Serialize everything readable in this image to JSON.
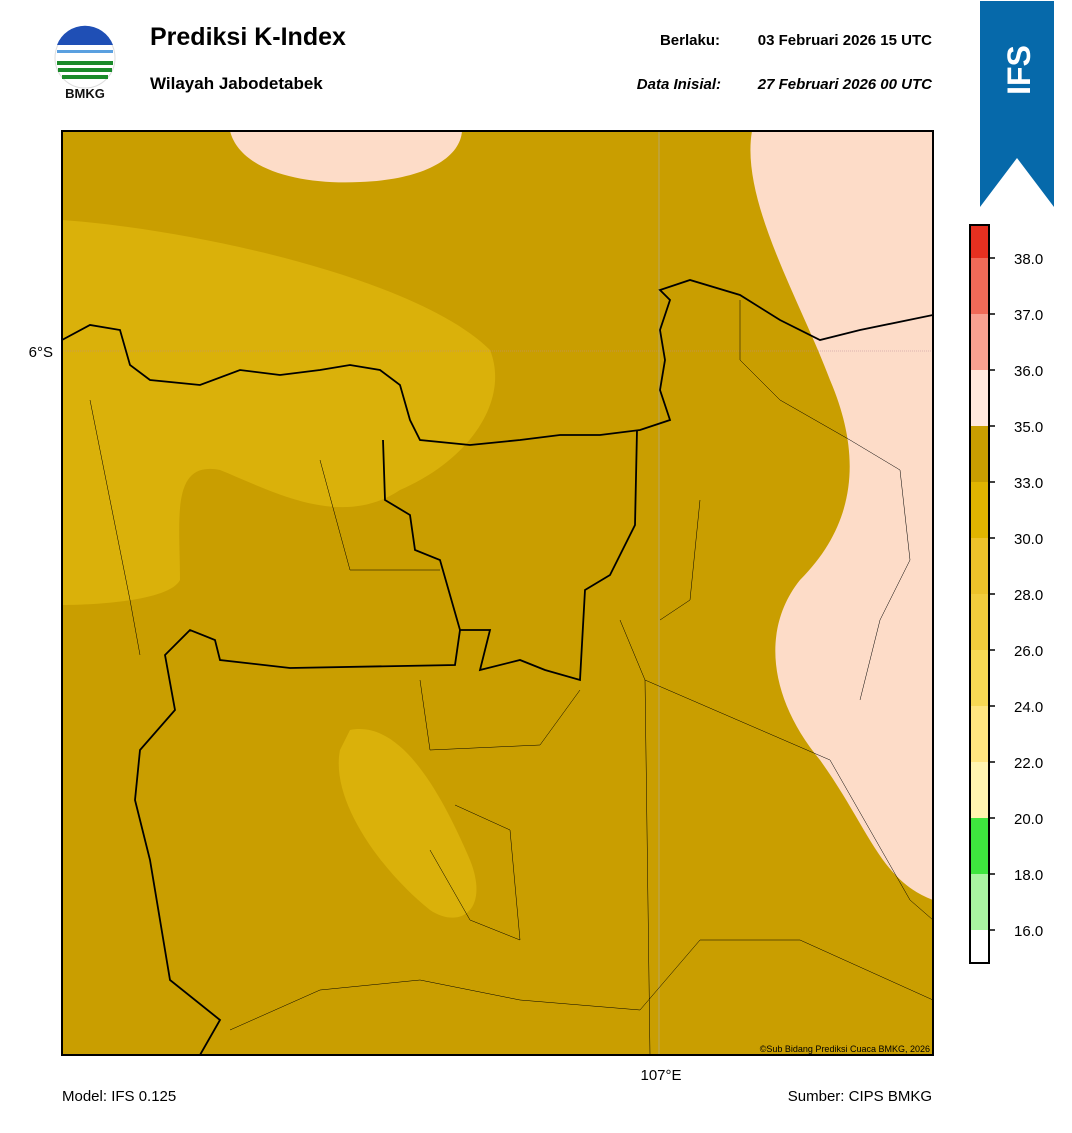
{
  "header": {
    "logo_text": "BMKG",
    "title": "Prediksi K-Index",
    "subtitle": "Wilayah Jabodetabek",
    "valid_label": "Berlaku:",
    "valid_time": "03 Februari 2026 15 UTC",
    "init_label": "Data Inisial:",
    "init_time": "27 Februari 2026 00 UTC"
  },
  "badge": "IFS",
  "map": {
    "lat_label": "6°S",
    "lon_label": "107°E",
    "copyright": "©Sub Bidang Prediksi Cuaca BMKG, 2026"
  },
  "colorbar": {
    "colors": [
      "#ffffff",
      "#a8f5a0",
      "#3ee63e",
      "#fff5b0",
      "#ffe680",
      "#f7d954",
      "#f2cc3c",
      "#edc22a",
      "#e0b400",
      "#c99e00",
      "#ffe8dc",
      "#f8a090",
      "#f06a58",
      "#e63020"
    ],
    "ticks": [
      {
        "value": 16,
        "label": "16.0"
      },
      {
        "value": 18,
        "label": "18.0"
      },
      {
        "value": 20,
        "label": "20.0"
      },
      {
        "value": 22,
        "label": "22.0"
      },
      {
        "value": 24,
        "label": "24.0"
      },
      {
        "value": 26,
        "label": "26.0"
      },
      {
        "value": 28,
        "label": "28.0"
      },
      {
        "value": 30,
        "label": "30.0"
      },
      {
        "value": 33,
        "label": "33.0"
      },
      {
        "value": 35,
        "label": "35.0"
      },
      {
        "value": 36,
        "label": "36.0"
      },
      {
        "value": 37,
        "label": "37.0"
      },
      {
        "value": 38,
        "label": "38.0"
      }
    ]
  },
  "footer": {
    "model": "Model: IFS 0.125",
    "source": "Sumber: CIPS BMKG"
  }
}
